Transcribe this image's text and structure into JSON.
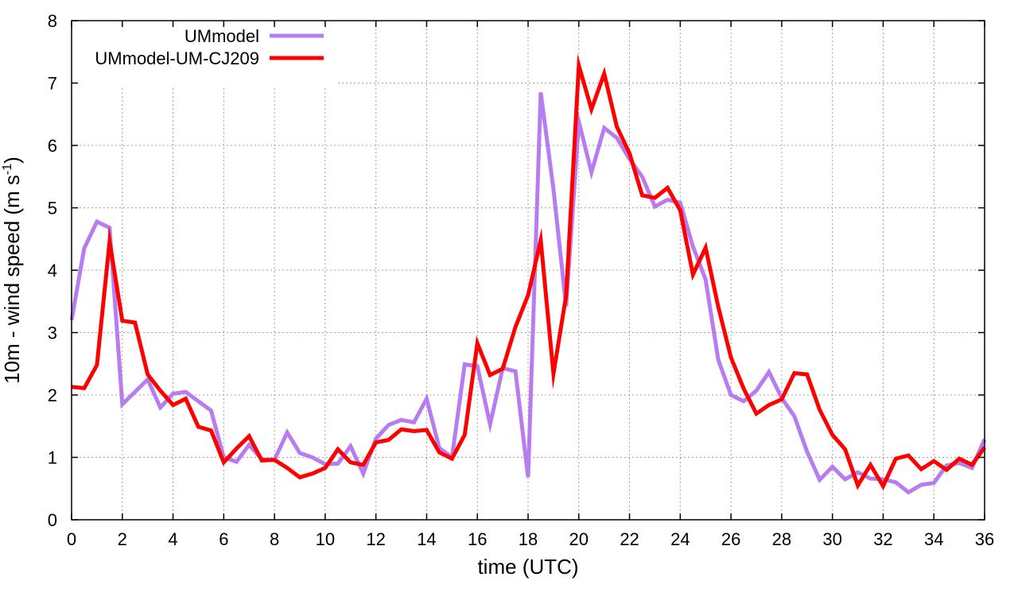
{
  "chart_data": {
    "type": "line",
    "xlabel": "time (UTC)",
    "ylabel_main": "10m - wind speed  (m s",
    "ylabel_sup": "-1",
    "ylabel_close": ")",
    "xlim": [
      0,
      36
    ],
    "ylim": [
      0,
      8
    ],
    "xticks": [
      0,
      2,
      4,
      6,
      8,
      10,
      12,
      14,
      16,
      18,
      20,
      22,
      24,
      26,
      28,
      30,
      32,
      34,
      36
    ],
    "yticks": [
      0,
      1,
      2,
      3,
      4,
      5,
      6,
      7,
      8
    ],
    "grid": true,
    "legend_position": "top-left",
    "x": [
      0,
      0.5,
      1,
      1.5,
      2,
      2.5,
      3,
      3.5,
      4,
      4.5,
      5,
      5.5,
      6,
      6.5,
      7,
      7.5,
      8,
      8.5,
      9,
      9.5,
      10,
      10.5,
      11,
      11.5,
      12,
      12.5,
      13,
      13.5,
      14,
      14.5,
      15,
      15.5,
      16,
      16.5,
      17,
      17.5,
      18,
      18.5,
      19,
      19.5,
      20,
      20.5,
      21,
      21.5,
      22,
      22.5,
      23,
      23.5,
      24,
      24.5,
      25,
      25.5,
      26,
      26.5,
      27,
      27.5,
      28,
      28.5,
      29,
      29.5,
      30,
      30.5,
      31,
      31.5,
      32,
      32.5,
      33,
      33.5,
      34,
      34.5,
      35,
      35.5,
      36
    ],
    "series": [
      {
        "name": "UMmodel",
        "color": "#b77cf0",
        "values": [
          3.2,
          4.35,
          4.78,
          4.68,
          1.85,
          2.05,
          2.25,
          1.8,
          2.02,
          2.05,
          1.9,
          1.75,
          1.0,
          0.93,
          1.2,
          0.97,
          0.96,
          1.4,
          1.07,
          1.0,
          0.89,
          0.9,
          1.18,
          0.74,
          1.3,
          1.52,
          1.6,
          1.56,
          1.94,
          1.15,
          1.0,
          2.49,
          2.46,
          1.53,
          2.43,
          2.38,
          0.68,
          6.85,
          5.3,
          3.42,
          6.38,
          5.57,
          6.28,
          6.12,
          5.78,
          5.5,
          5.02,
          5.13,
          5.08,
          4.38,
          3.85,
          2.56,
          2.0,
          1.9,
          2.07,
          2.37,
          1.95,
          1.66,
          1.09,
          0.64,
          0.85,
          0.65,
          0.76,
          0.66,
          0.65,
          0.6,
          0.44,
          0.56,
          0.59,
          0.87,
          0.91,
          0.83,
          1.29
        ]
      },
      {
        "name": "UMmodel-UM-CJ209",
        "color": "#ff0000",
        "values": [
          2.13,
          2.11,
          2.48,
          4.46,
          3.19,
          3.16,
          2.33,
          2.07,
          1.84,
          1.94,
          1.49,
          1.43,
          0.92,
          1.14,
          1.34,
          0.95,
          0.96,
          0.83,
          0.68,
          0.74,
          0.83,
          1.13,
          0.92,
          0.88,
          1.24,
          1.28,
          1.45,
          1.42,
          1.44,
          1.08,
          0.98,
          1.36,
          2.83,
          2.32,
          2.42,
          3.09,
          3.6,
          4.48,
          2.34,
          3.59,
          7.28,
          6.58,
          7.15,
          6.3,
          5.87,
          5.2,
          5.16,
          5.32,
          4.96,
          3.93,
          4.36,
          3.41,
          2.6,
          2.1,
          1.7,
          1.84,
          1.93,
          2.35,
          2.33,
          1.76,
          1.36,
          1.13,
          0.55,
          0.88,
          0.54,
          0.98,
          1.03,
          0.81,
          0.94,
          0.8,
          0.98,
          0.88,
          1.16
        ]
      }
    ]
  }
}
